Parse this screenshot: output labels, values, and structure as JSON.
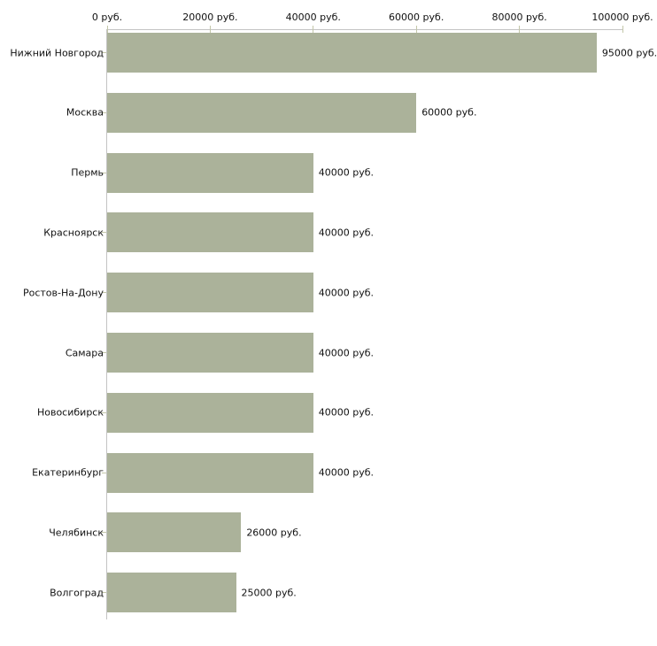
{
  "chart_data": {
    "type": "bar",
    "orientation": "horizontal",
    "title": "",
    "xlabel": "",
    "ylabel": "",
    "categories": [
      "Нижний Новгород",
      "Москва",
      "Пермь",
      "Красноярск",
      "Ростов-На-Дону",
      "Самара",
      "Новосибирск",
      "Екатеринбург",
      "Челябинск",
      "Волгоград"
    ],
    "values": [
      95000,
      60000,
      40000,
      40000,
      40000,
      40000,
      40000,
      40000,
      26000,
      25000
    ],
    "value_labels": [
      "95000 руб.",
      "60000 руб.",
      "40000 руб.",
      "40000 руб.",
      "40000 руб.",
      "40000 руб.",
      "40000 руб.",
      "40000 руб.",
      "26000 руб.",
      "25000 руб."
    ],
    "xlim": [
      0,
      100000
    ],
    "x_ticks": [
      0,
      20000,
      40000,
      60000,
      80000,
      100000
    ],
    "x_tick_labels": [
      "0 руб.",
      "20000 руб.",
      "40000 руб.",
      "60000 руб.",
      "80000 руб.",
      "100000 руб."
    ],
    "x_axis_position": "top",
    "grid": false,
    "legend": false,
    "colors": {
      "bar": "#abb29a",
      "axis_line": "#c4c4c4",
      "tick": "#c3c7a9",
      "text": "#111111",
      "background": "#ffffff"
    }
  }
}
